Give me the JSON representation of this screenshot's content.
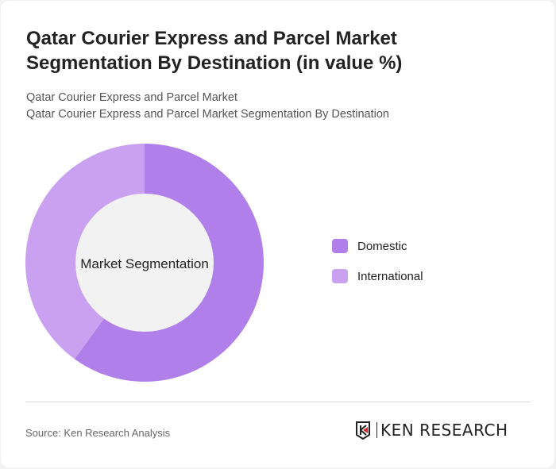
{
  "title": "Qatar Courier Express and Parcel Market Segmentation By Destination (in value %)",
  "subtitle_1": "Qatar Courier Express and Parcel Market",
  "subtitle_2": "Qatar Courier Express and Parcel Market Segmentation By Destination",
  "source": "Source: Ken Research Analysis",
  "logo_text": "KEN RESEARCH",
  "chart_data": {
    "type": "pie",
    "variant": "donut",
    "center_label": "Market Segmentation",
    "categories": [
      "Domestic",
      "International"
    ],
    "values": [
      60,
      40
    ],
    "unit": "%",
    "colors": [
      "#b07fea",
      "#c9a1f0"
    ],
    "legend_position": "right"
  }
}
